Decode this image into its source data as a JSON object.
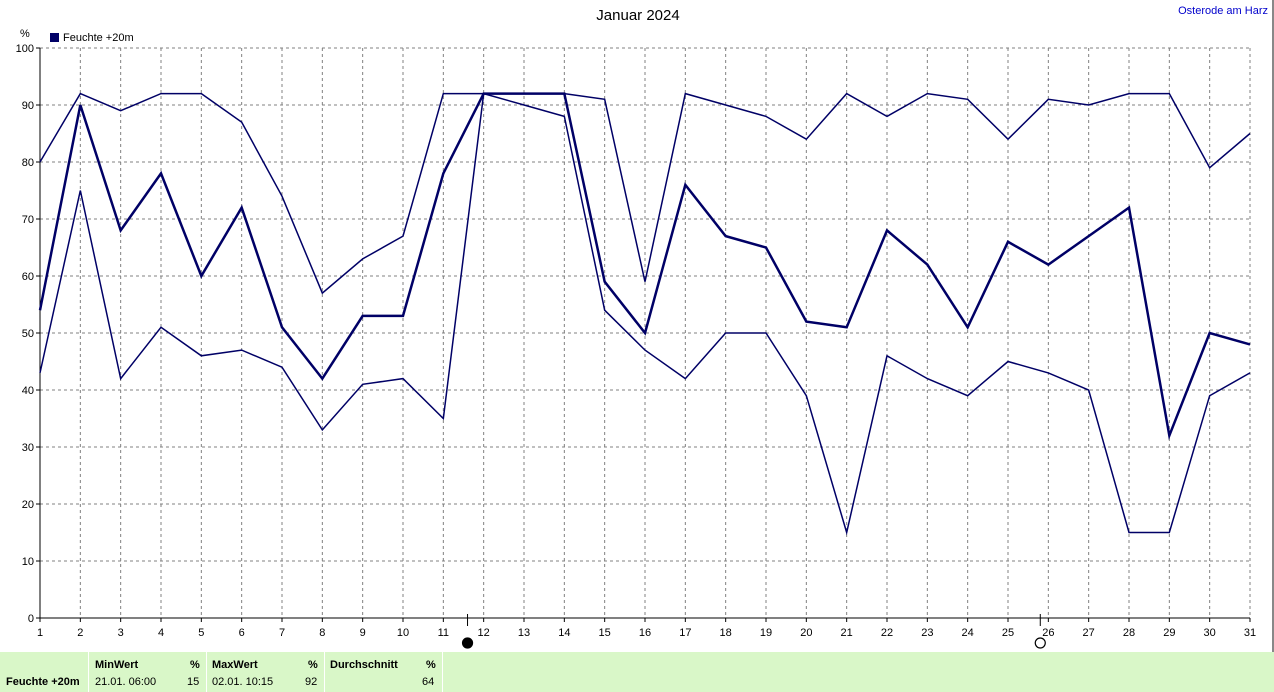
{
  "chart_data": {
    "type": "line",
    "title": "Januar 2024",
    "location": "Osterode am Harz",
    "ylabel": "%",
    "ylim": [
      0,
      100
    ],
    "yticks": [
      0,
      10,
      20,
      30,
      40,
      50,
      60,
      70,
      80,
      90,
      100
    ],
    "x": [
      1,
      2,
      3,
      4,
      5,
      6,
      7,
      8,
      9,
      10,
      11,
      12,
      13,
      14,
      15,
      16,
      17,
      18,
      19,
      20,
      21,
      22,
      23,
      24,
      25,
      26,
      27,
      28,
      29,
      30,
      31
    ],
    "grid": true,
    "legend_placement": "top-left",
    "legend": "Feuchte +20m",
    "series": [
      {
        "role": "max",
        "values": [
          80,
          92,
          89,
          92,
          92,
          87,
          74,
          57,
          63,
          67,
          92,
          92,
          92,
          92,
          91,
          59,
          92,
          90,
          88,
          84,
          92,
          88,
          92,
          91,
          84,
          91,
          90,
          92,
          92,
          79,
          85
        ]
      },
      {
        "role": "mean",
        "values": [
          54,
          90,
          68,
          78,
          60,
          72,
          51,
          42,
          53,
          53,
          78,
          92,
          92,
          92,
          59,
          50,
          76,
          67,
          65,
          52,
          51,
          68,
          62,
          51,
          66,
          62,
          67,
          72,
          32,
          50,
          48
        ]
      },
      {
        "role": "min",
        "values": [
          43,
          75,
          42,
          51,
          46,
          47,
          44,
          33,
          41,
          42,
          35,
          92,
          90,
          88,
          54,
          47,
          42,
          50,
          50,
          39,
          15,
          46,
          42,
          39,
          45,
          43,
          40,
          15,
          15,
          39,
          43
        ]
      }
    ],
    "moon_markers": [
      {
        "day": 11.6,
        "phase": "new-moon-icon"
      },
      {
        "day": 25.8,
        "phase": "full-moon-icon"
      }
    ],
    "line_color": "#000066"
  },
  "footer": {
    "series_label": "Feuchte +20m",
    "min_header": "MinWert",
    "min_unit": "%",
    "min_date": "21.01.  06:00",
    "min_value": "15",
    "max_header": "MaxWert",
    "max_unit": "%",
    "max_date": "02.01.  10:15",
    "max_value": "92",
    "avg_header": "Durchschnitt",
    "avg_unit": "%",
    "avg_value": "64"
  }
}
